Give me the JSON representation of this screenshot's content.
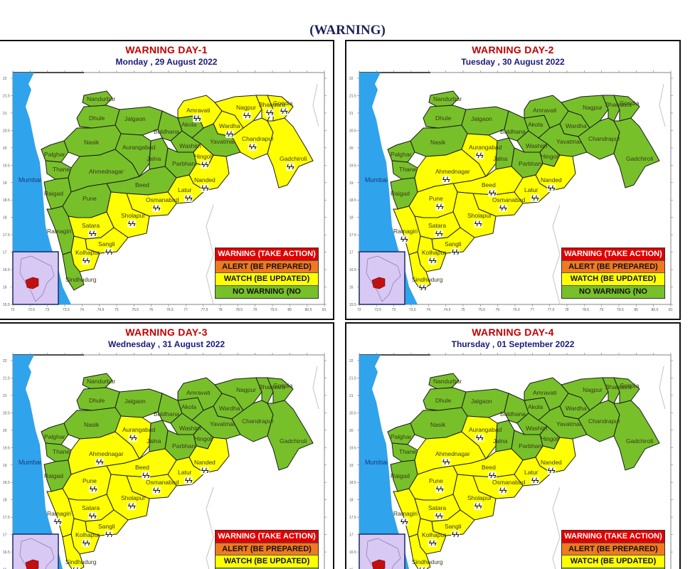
{
  "page": {
    "title": "(WARNING)"
  },
  "colors": {
    "warning": "#e00000",
    "alert": "#f07a20",
    "watch": "#ffff00",
    "no_warning": "#77c02a",
    "sea": "#2fa3ec",
    "inset_bg": "#d8c8f4",
    "day_title": "#c00000",
    "date_text": "#1a1a7a"
  },
  "legend": [
    {
      "key": "warning",
      "label": "WARNING (TAKE ACTION)",
      "color": "#e00000",
      "text_color": "#ffffff"
    },
    {
      "key": "alert",
      "label": "ALERT (BE PREPARED)",
      "color": "#f07a20",
      "text_color": "#111111"
    },
    {
      "key": "watch",
      "label": "WATCH (BE UPDATED)",
      "color": "#ffff00",
      "text_color": "#111111"
    },
    {
      "key": "no_warning",
      "label": "NO WARNING (NO",
      "color": "#77c02a",
      "text_color": "#111111"
    }
  ],
  "axes": {
    "x_ticks": [
      "72",
      "72.5",
      "73",
      "73.5",
      "74",
      "74.5",
      "75",
      "75.5",
      "76",
      "76.5",
      "77",
      "77.5",
      "78",
      "78.5",
      "79",
      "79.5",
      "80",
      "80.5",
      "81"
    ],
    "y_ticks": [
      "22",
      "21.5",
      "21",
      "20.5",
      "20",
      "19.5",
      "19",
      "18.5",
      "18",
      "17.5",
      "17",
      "16.5",
      "16",
      "15.5"
    ]
  },
  "sea_label": "Mumbai",
  "panels": [
    {
      "day_label": "WARNING DAY-1",
      "date": "Monday , 29 August 2022",
      "districts": {
        "Nandurbar": "no_warning",
        "Dhule": "no_warning",
        "Jalgaon": "no_warning",
        "Nasik": "no_warning",
        "Palghar": "no_warning",
        "Thane": "no_warning",
        "Mumbai": "no_warning",
        "Raigad": "no_warning",
        "Pune": "no_warning",
        "Ahmednagar": "no_warning",
        "Aurangabad": "no_warning",
        "Jalna": "no_warning",
        "Beed": "no_warning",
        "Buldhana": "no_warning",
        "Akola": "no_warning",
        "Washim": "no_warning",
        "Yavatmal": "no_warning",
        "Parbhani": "no_warning",
        "Ratnagiri": "no_warning",
        "Sindhudurg": "no_warning",
        "Amravati": "watch",
        "Nagpur": "watch",
        "Wardha": "watch",
        "Bhandara": "watch",
        "Gondia": "watch",
        "Chandrapur": "watch",
        "Gadchiroli": "watch",
        "Hingoli": "watch",
        "Nanded": "watch",
        "Latur": "watch",
        "Osmanabad": "watch",
        "Sholapur": "watch",
        "Satara": "watch",
        "Sangli": "watch",
        "Kolhapur": "watch"
      },
      "thunder_icons": [
        "Amravati",
        "Nagpur",
        "Bhandara",
        "Gondia",
        "Wardha",
        "Chandrapur",
        "Gadchiroli",
        "Hingoli",
        "Nanded",
        "Latur",
        "Osmanabad",
        "Sholapur",
        "Satara",
        "Sangli",
        "Kolhapur"
      ]
    },
    {
      "day_label": "WARNING DAY-2",
      "date": "Tuesday , 30 August 2022",
      "districts": {
        "Nandurbar": "no_warning",
        "Dhule": "no_warning",
        "Jalgaon": "no_warning",
        "Nasik": "no_warning",
        "Palghar": "no_warning",
        "Thane": "no_warning",
        "Mumbai": "no_warning",
        "Raigad": "no_warning",
        "Jalna": "no_warning",
        "Buldhana": "no_warning",
        "Akola": "no_warning",
        "Washim": "no_warning",
        "Yavatmal": "no_warning",
        "Parbhani": "no_warning",
        "Hingoli": "no_warning",
        "Amravati": "no_warning",
        "Nagpur": "no_warning",
        "Wardha": "no_warning",
        "Bhandara": "no_warning",
        "Gondia": "no_warning",
        "Chandrapur": "no_warning",
        "Gadchiroli": "no_warning",
        "Aurangabad": "watch",
        "Ahmednagar": "watch",
        "Beed": "watch",
        "Pune": "watch",
        "Nanded": "watch",
        "Latur": "watch",
        "Osmanabad": "watch",
        "Sholapur": "watch",
        "Satara": "watch",
        "Sangli": "watch",
        "Kolhapur": "watch",
        "Ratnagiri": "watch",
        "Sindhudurg": "watch"
      },
      "thunder_icons": [
        "Aurangabad",
        "Ahmednagar",
        "Beed",
        "Pune",
        "Nanded",
        "Latur",
        "Osmanabad",
        "Sholapur",
        "Satara",
        "Sangli",
        "Kolhapur",
        "Ratnagiri",
        "Sindhudurg"
      ]
    },
    {
      "day_label": "WARNING DAY-3",
      "date": "Wednesday , 31 August 2022",
      "districts": {
        "Nandurbar": "no_warning",
        "Dhule": "no_warning",
        "Jalgaon": "no_warning",
        "Nasik": "no_warning",
        "Palghar": "no_warning",
        "Thane": "no_warning",
        "Mumbai": "no_warning",
        "Raigad": "no_warning",
        "Jalna": "no_warning",
        "Buldhana": "no_warning",
        "Akola": "no_warning",
        "Washim": "no_warning",
        "Yavatmal": "no_warning",
        "Parbhani": "no_warning",
        "Hingoli": "no_warning",
        "Amravati": "no_warning",
        "Nagpur": "no_warning",
        "Wardha": "no_warning",
        "Bhandara": "no_warning",
        "Gondia": "no_warning",
        "Chandrapur": "no_warning",
        "Gadchiroli": "no_warning",
        "Aurangabad": "watch",
        "Ahmednagar": "watch",
        "Beed": "watch",
        "Pune": "watch",
        "Nanded": "watch",
        "Latur": "watch",
        "Osmanabad": "watch",
        "Sholapur": "watch",
        "Satara": "watch",
        "Sangli": "watch",
        "Kolhapur": "watch",
        "Ratnagiri": "watch",
        "Sindhudurg": "watch"
      },
      "thunder_icons": [
        "Aurangabad",
        "Ahmednagar",
        "Beed",
        "Pune",
        "Nanded",
        "Latur",
        "Osmanabad",
        "Sholapur",
        "Satara",
        "Sangli",
        "Kolhapur",
        "Ratnagiri",
        "Sindhudurg"
      ]
    },
    {
      "day_label": "WARNING DAY-4",
      "date": "Thursday , 01 September 2022",
      "districts": {
        "Nandurbar": "no_warning",
        "Dhule": "no_warning",
        "Jalgaon": "no_warning",
        "Nasik": "no_warning",
        "Palghar": "no_warning",
        "Thane": "no_warning",
        "Mumbai": "no_warning",
        "Raigad": "no_warning",
        "Jalna": "no_warning",
        "Buldhana": "no_warning",
        "Akola": "no_warning",
        "Washim": "no_warning",
        "Yavatmal": "no_warning",
        "Parbhani": "no_warning",
        "Hingoli": "no_warning",
        "Amravati": "no_warning",
        "Nagpur": "no_warning",
        "Wardha": "no_warning",
        "Bhandara": "no_warning",
        "Gondia": "no_warning",
        "Chandrapur": "no_warning",
        "Gadchiroli": "no_warning",
        "Aurangabad": "watch",
        "Ahmednagar": "watch",
        "Beed": "watch",
        "Pune": "watch",
        "Nanded": "watch",
        "Latur": "watch",
        "Osmanabad": "watch",
        "Sholapur": "watch",
        "Satara": "watch",
        "Sangli": "watch",
        "Kolhapur": "watch",
        "Ratnagiri": "watch",
        "Sindhudurg": "watch"
      },
      "thunder_icons": [
        "Aurangabad",
        "Ahmednagar",
        "Beed",
        "Pune",
        "Nanded",
        "Latur",
        "Osmanabad",
        "Sholapur",
        "Satara",
        "Sangli",
        "Kolhapur",
        "Ratnagiri",
        "Sindhudurg"
      ]
    }
  ],
  "district_labels": {
    "Nandurbar": "Nandurbar",
    "Dhule": "Dhule",
    "Jalgaon": "Jalgaon",
    "Nasik": "Nasik",
    "Palghar": "Palghar",
    "Thane": "Thane",
    "Mumbai": "Mumbai",
    "Raigad": "Raigad",
    "Pune": "Pune",
    "Ahmednagar": "Ahmednagar",
    "Aurangabad": "Aurangabad",
    "Jalna": "Jalna",
    "Beed": "Beed",
    "Buldhana": "Buldhana",
    "Akola": "Akola",
    "Washim": "Washim",
    "Yavatmal": "Yavatmal",
    "Parbhani": "Parbhani",
    "Hingoli": "Hingoli",
    "Nanded": "Nanded",
    "Latur": "Latur",
    "Osmanabad": "Osmanabad",
    "Sholapur": "Sholapur",
    "Satara": "Satara",
    "Sangli": "Sangli",
    "Kolhapur": "Kolhapur",
    "Ratnagiri": "Ratnagiri",
    "Sindhudurg": "Sindhudurg",
    "Amravati": "Amravati",
    "Nagpur": "Nagpur",
    "Wardha": "Wardha",
    "Bhandara": "Bhandara",
    "Gondia": "Gondia",
    "Chandrapur": "Chandrapur",
    "Gadchiroli": "Gadchiroli"
  }
}
